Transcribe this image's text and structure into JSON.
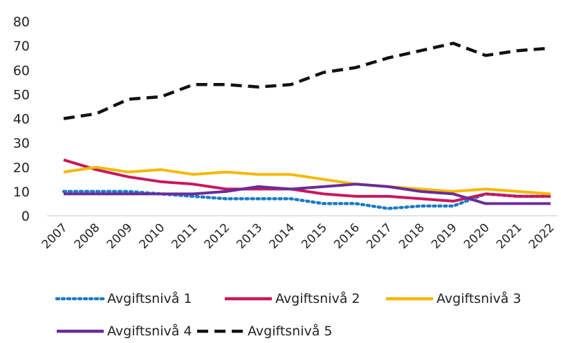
{
  "chart_data": {
    "type": "line",
    "title": "",
    "xlabel": "",
    "ylabel": "",
    "ylim": [
      0,
      80
    ],
    "yticks": [
      0,
      10,
      20,
      30,
      40,
      50,
      60,
      70,
      80
    ],
    "grid": false,
    "legend_position": "bottom",
    "categories": [
      "2007",
      "2008",
      "2009",
      "2010",
      "2011",
      "2012",
      "2013",
      "2014",
      "2015",
      "2016",
      "2017",
      "2018",
      "2019",
      "2020",
      "2021",
      "2022"
    ],
    "series": [
      {
        "name": "Avgiftsnivå 1",
        "color": "#1a7cc4",
        "dash": "dotted",
        "values": [
          10,
          10,
          10,
          9,
          8,
          7,
          7,
          7,
          5,
          5,
          3,
          4,
          4,
          9,
          8,
          8
        ]
      },
      {
        "name": "Avgiftsnivå 2",
        "color": "#c8175d",
        "dash": "solid",
        "values": [
          23,
          19,
          16,
          14,
          13,
          11,
          11,
          11,
          9,
          8,
          8,
          7,
          6,
          9,
          8,
          8
        ]
      },
      {
        "name": "Avgiftsnivå 3",
        "color": "#f5b800",
        "dash": "solid",
        "values": [
          18,
          20,
          18,
          19,
          17,
          18,
          17,
          17,
          15,
          13,
          12,
          11,
          10,
          11,
          10,
          9
        ]
      },
      {
        "name": "Avgiftsnivå 4",
        "color": "#6a2c9a",
        "dash": "solid",
        "values": [
          9,
          9,
          9,
          9,
          9,
          10,
          12,
          11,
          12,
          13,
          12,
          10,
          9,
          5,
          5,
          5
        ]
      },
      {
        "name": "Avgiftsnivå 5",
        "color": "#111111",
        "dash": "dashed",
        "values": [
          40,
          42,
          48,
          49,
          54,
          54,
          53,
          54,
          59,
          61,
          65,
          68,
          71,
          66,
          68,
          69
        ]
      }
    ]
  }
}
